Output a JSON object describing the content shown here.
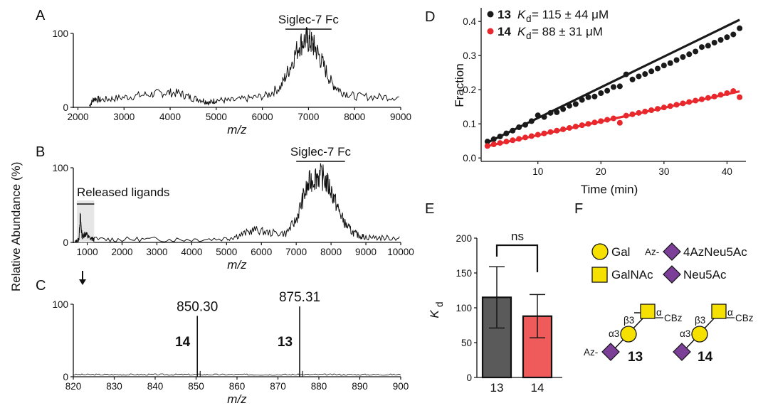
{
  "panels": {
    "A": "A",
    "B": "B",
    "C": "C",
    "D": "D",
    "E": "E",
    "F": "F"
  },
  "shared_ylabel": "Relative Abundance (%)",
  "colors": {
    "compound13": "#1a1a1a",
    "compound14": "#e8282c",
    "bar13": "#5a5a5a",
    "bar14": "#ef5b5b",
    "gal": "#f5e000",
    "neu5ac": "#7b3f98"
  },
  "chart_data": [
    {
      "id": "A",
      "type": "line",
      "title": "",
      "xlabel": "m/z",
      "ylabel": "",
      "xlim": [
        1900,
        9000
      ],
      "ylim": [
        0,
        100
      ],
      "xticks": [
        2000,
        3000,
        4000,
        5000,
        6000,
        7000,
        8000,
        9000
      ],
      "yticks": [
        0,
        100
      ],
      "annotation": "Siglec-7 Fc",
      "annotation_range": [
        6500,
        7500
      ],
      "series": [
        {
          "x": [
            2250,
            2350,
            2500,
            2800,
            3200,
            3600,
            3900,
            4200,
            4450,
            4700,
            4850,
            5000,
            5300,
            5700,
            6100,
            6400,
            6600,
            6800,
            6950,
            7050,
            7150,
            7300,
            7500,
            7700,
            8000,
            8500,
            9000
          ],
          "y": [
            2,
            12,
            10,
            12,
            15,
            18,
            20,
            19,
            13,
            10,
            6,
            10,
            9,
            12,
            16,
            28,
            55,
            85,
            92,
            88,
            80,
            60,
            33,
            22,
            15,
            14,
            14
          ]
        }
      ]
    },
    {
      "id": "B",
      "type": "line",
      "title": "",
      "xlabel": "m/z",
      "ylabel": "",
      "xlim": [
        600,
        10000
      ],
      "ylim": [
        0,
        100
      ],
      "xticks": [
        1000,
        2000,
        3000,
        4000,
        5000,
        6000,
        7000,
        8000,
        9000,
        10000
      ],
      "yticks": [
        0,
        100
      ],
      "annotation": "Siglec-7 Fc",
      "annotation_range": [
        7000,
        8400
      ],
      "annotation2": "Released ligands",
      "annotation2_range": [
        700,
        1200
      ],
      "series": [
        {
          "x": [
            650,
            760,
            800,
            850,
            950,
            1050,
            1200,
            2000,
            3000,
            4000,
            5000,
            5400,
            5800,
            6200,
            6700,
            7000,
            7200,
            7400,
            7600,
            7800,
            8000,
            8200,
            8400,
            8600,
            8800,
            9000,
            9500,
            10000
          ],
          "y": [
            0,
            4,
            35,
            8,
            12,
            6,
            4,
            4,
            4,
            4,
            5,
            10,
            17,
            13,
            12,
            30,
            60,
            82,
            90,
            86,
            70,
            45,
            25,
            14,
            9,
            7,
            6,
            6
          ]
        }
      ]
    },
    {
      "id": "C",
      "type": "line",
      "title": "",
      "xlabel": "m/z",
      "ylabel": "",
      "xlim": [
        820,
        900
      ],
      "ylim": [
        0,
        100
      ],
      "xticks": [
        820,
        830,
        840,
        850,
        860,
        870,
        880,
        890,
        900
      ],
      "yticks": [
        0,
        100
      ],
      "peaks": [
        {
          "x": 850.3,
          "y": 84,
          "label": "850.30",
          "compound": "14"
        },
        {
          "x": 875.31,
          "y": 97,
          "label": "875.31",
          "compound": "13"
        }
      ]
    },
    {
      "id": "D",
      "type": "scatter",
      "title": "",
      "xlabel": "Time (min)",
      "ylabel": "Fraction",
      "xlim": [
        1,
        43
      ],
      "ylim": [
        -0.01,
        0.44
      ],
      "xticks": [
        10,
        20,
        30,
        40
      ],
      "yticks": [
        0.0,
        0.1,
        0.2,
        0.3,
        0.4
      ],
      "legend_position": "top-left",
      "series": [
        {
          "name": "13",
          "kd": "= 115 ± 44 μM",
          "color": "#1a1a1a",
          "x": [
            2,
            3,
            4,
            5,
            6,
            7,
            8,
            9,
            10,
            11,
            12,
            13,
            14,
            15,
            16,
            17,
            18,
            19,
            20,
            21,
            22,
            23,
            24,
            25,
            26,
            27,
            28,
            29,
            30,
            31,
            32,
            33,
            34,
            35,
            36,
            37,
            38,
            39,
            40,
            41,
            42
          ],
          "y": [
            0.048,
            0.055,
            0.063,
            0.072,
            0.08,
            0.09,
            0.097,
            0.108,
            0.125,
            0.12,
            0.132,
            0.134,
            0.143,
            0.153,
            0.158,
            0.17,
            0.178,
            0.18,
            0.19,
            0.197,
            0.208,
            0.21,
            0.245,
            0.23,
            0.239,
            0.246,
            0.254,
            0.262,
            0.271,
            0.278,
            0.287,
            0.296,
            0.304,
            0.312,
            0.325,
            0.329,
            0.338,
            0.346,
            0.354,
            0.362,
            0.38
          ],
          "fit": [
            [
              2,
              0.045
            ],
            [
              42,
              0.405
            ]
          ]
        },
        {
          "name": "14",
          "kd": "= 88 ± 31 μM",
          "color": "#e8282c",
          "x": [
            2,
            3,
            4,
            5,
            6,
            7,
            8,
            9,
            10,
            11,
            12,
            13,
            14,
            15,
            16,
            17,
            18,
            19,
            20,
            21,
            22,
            23,
            24,
            25,
            26,
            27,
            28,
            29,
            30,
            31,
            32,
            33,
            34,
            35,
            36,
            37,
            38,
            39,
            40,
            41,
            42
          ],
          "y": [
            0.035,
            0.04,
            0.044,
            0.048,
            0.052,
            0.056,
            0.06,
            0.064,
            0.068,
            0.072,
            0.076,
            0.08,
            0.084,
            0.088,
            0.092,
            0.096,
            0.1,
            0.104,
            0.108,
            0.112,
            0.116,
            0.103,
            0.124,
            0.128,
            0.132,
            0.136,
            0.14,
            0.144,
            0.148,
            0.152,
            0.156,
            0.16,
            0.164,
            0.168,
            0.172,
            0.176,
            0.18,
            0.185,
            0.19,
            0.196,
            0.178
          ],
          "fit": [
            [
              2,
              0.035
            ],
            [
              42,
              0.195
            ]
          ]
        }
      ]
    },
    {
      "id": "E",
      "type": "bar",
      "title": "",
      "xlabel": "",
      "ylabel": "K",
      "ylabel_subscript": "d",
      "ylim": [
        0,
        200
      ],
      "yticks": [
        0,
        50,
        100,
        150,
        200
      ],
      "categories": [
        "13",
        "14"
      ],
      "values": [
        115,
        88
      ],
      "errors": [
        44,
        31
      ],
      "significance": "ns"
    }
  ],
  "legend_F": {
    "gal": "Gal",
    "galnac": "GalNAc",
    "az_prefix": "Az-",
    "azneu": "4AzNeu5Ac",
    "neu": "Neu5Ac",
    "linkage_a3": "α3",
    "linkage_b3": "β3",
    "linkage_a": "α",
    "cbz": "CBz",
    "compound13": "13",
    "compound14": "14"
  }
}
